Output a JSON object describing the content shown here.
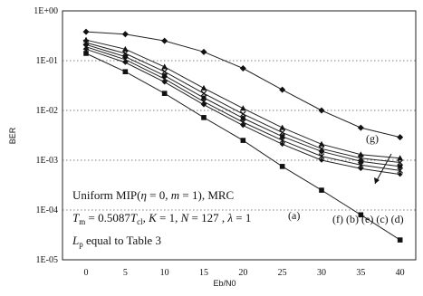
{
  "chart_data": {
    "type": "line",
    "xlabel": "Eb/N0",
    "ylabel": "BER",
    "x": [
      0,
      5,
      10,
      15,
      20,
      25,
      30,
      35,
      40
    ],
    "xlim": [
      -3,
      42
    ],
    "ylim_log10": [
      -5,
      0
    ],
    "y_scale": "log",
    "x_ticks": [
      "0",
      "5",
      "10",
      "15",
      "20",
      "25",
      "30",
      "35",
      "40"
    ],
    "y_ticks": [
      {
        "label": "1E+00",
        "exp": 0
      },
      {
        "label": "1E-01",
        "exp": -1
      },
      {
        "label": "1E-02",
        "exp": -2
      },
      {
        "label": "1E-03",
        "exp": -3
      },
      {
        "label": "1E-04",
        "exp": -4
      },
      {
        "label": "1E-05",
        "exp": -5
      }
    ],
    "grid": "horizontal dotted",
    "series": [
      {
        "name": "(g)",
        "marker": "diamond",
        "values": [
          0.38,
          0.34,
          0.25,
          0.15,
          0.07,
          0.026,
          0.01,
          0.0045,
          0.0029
        ]
      },
      {
        "name": "(d)",
        "marker": "triangle",
        "values": [
          0.26,
          0.17,
          0.075,
          0.028,
          0.011,
          0.0045,
          0.0021,
          0.0013,
          0.0011
        ]
      },
      {
        "name": "(c)",
        "marker": "x",
        "values": [
          0.23,
          0.14,
          0.06,
          0.022,
          0.0085,
          0.0036,
          0.0017,
          0.0011,
          0.0009
        ]
      },
      {
        "name": "(e)",
        "marker": "circle",
        "values": [
          0.21,
          0.12,
          0.05,
          0.018,
          0.007,
          0.003,
          0.0015,
          0.00095,
          0.00075
        ]
      },
      {
        "name": "(b)",
        "marker": "asterisk",
        "values": [
          0.19,
          0.105,
          0.043,
          0.015,
          0.0058,
          0.0025,
          0.0012,
          0.0008,
          0.00062
        ]
      },
      {
        "name": "(f)",
        "marker": "diamond-small",
        "values": [
          0.17,
          0.092,
          0.037,
          0.013,
          0.005,
          0.0021,
          0.001,
          0.00068,
          0.00052
        ]
      },
      {
        "name": "(a)",
        "marker": "square",
        "values": [
          0.14,
          0.06,
          0.022,
          0.0072,
          0.0025,
          0.00075,
          0.00025,
          8e-05,
          2.5e-05
        ]
      }
    ],
    "annotations": [
      {
        "id": "line1",
        "parts": [
          "Uniform MIP(",
          "η",
          " = 0,  ",
          "m",
          " = 1), MRC"
        ]
      },
      {
        "id": "line2",
        "parts": [
          "T",
          "m",
          " = 0.5087",
          "T",
          "cl",
          ",  ",
          "K",
          " = 1,  ",
          "N",
          " = 127  , ",
          "λ",
          " = 1"
        ]
      },
      {
        "id": "line3",
        "parts": [
          "L",
          "p",
          "  equal to Table 3"
        ]
      }
    ],
    "curve_labels": {
      "a": "(a)",
      "g": "(g)",
      "group": [
        "(f)",
        "(b)",
        "(e)",
        "(c)",
        "(d)"
      ]
    }
  }
}
